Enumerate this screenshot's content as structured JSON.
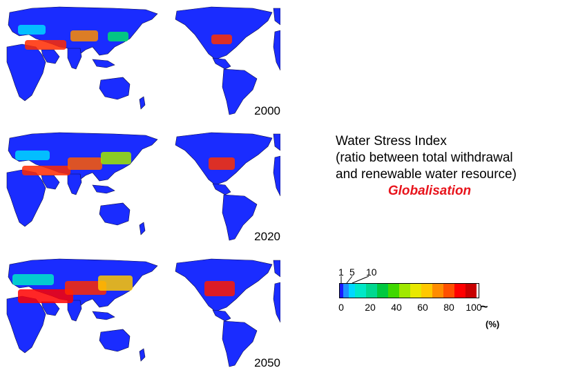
{
  "legend": {
    "title_line1": "Water Stress Index",
    "title_line2": "(ratio between total withdrawal",
    "title_line3": "and renewable water resource)",
    "scenario": "Globalisation",
    "top_labels": [
      "1",
      "5",
      "10"
    ],
    "tick_labels": [
      "0",
      "20",
      "40",
      "60",
      "80",
      "100"
    ],
    "overflow_symbol": "~",
    "unit": "(%)",
    "colors": [
      "#1a1aff",
      "#1e90ff",
      "#00d8ff",
      "#00e8c8",
      "#00d890",
      "#00c840",
      "#40d800",
      "#a0e800",
      "#e8e800",
      "#ffc800",
      "#ff8c00",
      "#ff5000",
      "#ff0000",
      "#c80000"
    ]
  },
  "maps": [
    {
      "year": "2000"
    },
    {
      "year": "2020"
    },
    {
      "year": "2050"
    }
  ]
}
